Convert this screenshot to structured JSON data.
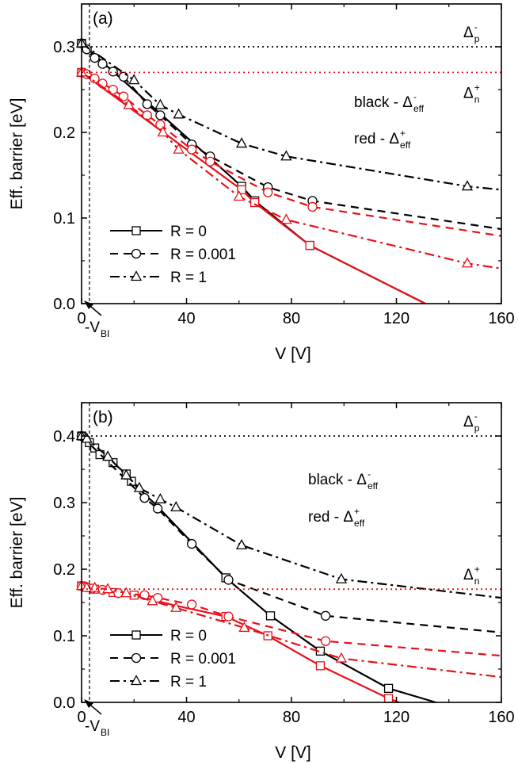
{
  "figure": {
    "colors": {
      "black": "#000000",
      "red": "#e8101a"
    },
    "vbi_label": "-V",
    "vbi_sub": "BI",
    "legend_R0": "R = 0",
    "legend_R0001": "R = 0.001",
    "legend_R1": "R = 1"
  },
  "chart_data": [
    {
      "type": "line",
      "panel_label": "(a)",
      "xlabel": "V [V]",
      "ylabel": "Eff. barrier [eV]",
      "xlim": [
        0,
        160
      ],
      "ylim": [
        0,
        0.35
      ],
      "xticks": [
        "0",
        "40",
        "80",
        "120",
        "160"
      ],
      "yticks": [
        "0.0",
        "0.1",
        "0.2",
        "0.3"
      ],
      "ytick_values": [
        0,
        0.1,
        0.2,
        0.3
      ],
      "reference_lines": [
        {
          "y": 0.3,
          "color": "black",
          "label": "Δ",
          "sup": "-",
          "sub": "p"
        },
        {
          "y": 0.27,
          "color": "red",
          "label": "Δ",
          "sup": "+",
          "sub": "n"
        }
      ],
      "annotations": [
        {
          "text": "black - Δ",
          "sup": "-",
          "sub": "eff"
        },
        {
          "text": "red - Δ",
          "sup": "+",
          "sub": "eff"
        }
      ],
      "series": [
        {
          "name": "R = 0",
          "color": "black",
          "dash": "solid",
          "marker": "square",
          "x": [
            0,
            61,
            66,
            87,
            131
          ],
          "y": [
            0.304,
            0.137,
            0.12,
            0.068,
            0
          ],
          "markers_x": [
            0,
            61,
            66,
            87
          ]
        },
        {
          "name": "R = 0",
          "color": "red",
          "dash": "solid",
          "marker": "square",
          "x": [
            0,
            61,
            66,
            87,
            131
          ],
          "y": [
            0.27,
            0.133,
            0.118,
            0.068,
            0
          ],
          "markers_x": [
            0,
            61,
            66,
            87
          ]
        },
        {
          "name": "R = 0.001",
          "color": "black",
          "dash": "dash",
          "marker": "circle",
          "x": [
            0,
            2,
            5,
            8,
            12,
            16,
            25,
            30,
            42,
            49,
            71,
            88,
            160
          ],
          "y": [
            0.304,
            0.297,
            0.287,
            0.28,
            0.271,
            0.265,
            0.233,
            0.22,
            0.186,
            0.172,
            0.136,
            0.12,
            0.087
          ]
        },
        {
          "name": "R = 0.001",
          "color": "red",
          "dash": "dash",
          "marker": "circle",
          "x": [
            0,
            2,
            5,
            8,
            12,
            16,
            25,
            30,
            42,
            49,
            71,
            88,
            160
          ],
          "y": [
            0.27,
            0.268,
            0.263,
            0.257,
            0.25,
            0.242,
            0.22,
            0.209,
            0.18,
            0.166,
            0.13,
            0.113,
            0.079
          ]
        },
        {
          "name": "R = 1",
          "color": "black",
          "dash": "dashdot",
          "marker": "triangle",
          "x": [
            0,
            20,
            30,
            37,
            61,
            78,
            147,
            160
          ],
          "y": [
            0.304,
            0.261,
            0.232,
            0.221,
            0.187,
            0.172,
            0.137,
            0.133
          ],
          "markers_x": [
            0,
            20,
            30,
            37,
            61,
            78,
            147
          ]
        },
        {
          "name": "R = 1",
          "color": "red",
          "dash": "dashdot",
          "marker": "triangle",
          "x": [
            0,
            18,
            31,
            37,
            60,
            78,
            147,
            160
          ],
          "y": [
            0.27,
            0.232,
            0.2,
            0.18,
            0.125,
            0.098,
            0.047,
            0.041
          ],
          "markers_x": [
            0,
            18,
            31,
            37,
            60,
            78,
            147
          ]
        }
      ]
    },
    {
      "type": "line",
      "panel_label": "(b)",
      "xlabel": "V [V]",
      "ylabel": "Eff. barrier [eV]",
      "xlim": [
        0,
        160
      ],
      "ylim": [
        0,
        0.45
      ],
      "xticks": [
        "0",
        "40",
        "80",
        "120",
        "160"
      ],
      "yticks": [
        "0.0",
        "0.1",
        "0.2",
        "0.3",
        "0.4"
      ],
      "ytick_values": [
        0,
        0.1,
        0.2,
        0.3,
        0.4
      ],
      "reference_lines": [
        {
          "y": 0.4,
          "color": "black",
          "label": "Δ",
          "sup": "-",
          "sub": "p"
        },
        {
          "y": 0.17,
          "color": "red",
          "label": "Δ",
          "sup": "+",
          "sub": "n"
        }
      ],
      "annotations": [
        {
          "text": "black - Δ",
          "sup": "-",
          "sub": "eff"
        },
        {
          "text": "red - Δ",
          "sup": "+",
          "sub": "eff"
        }
      ],
      "series": [
        {
          "name": "R = 0",
          "color": "black",
          "dash": "solid",
          "marker": "square",
          "x": [
            0,
            3,
            5,
            7,
            12,
            17,
            19,
            22,
            28,
            36,
            55,
            72,
            91,
            117,
            135
          ],
          "y": [
            0.4,
            0.39,
            0.382,
            0.372,
            0.36,
            0.343,
            0.332,
            0.32,
            0.298,
            0.265,
            0.187,
            0.13,
            0.077,
            0.021,
            0
          ],
          "markers_x": [
            0,
            3,
            5,
            7,
            12,
            17,
            19,
            55,
            72,
            91,
            117
          ]
        },
        {
          "name": "R = 0",
          "color": "red",
          "dash": "solid",
          "marker": "square",
          "x": [
            0,
            5,
            12,
            20,
            35,
            55,
            71,
            91,
            117,
            121
          ],
          "y": [
            0.175,
            0.17,
            0.165,
            0.161,
            0.146,
            0.129,
            0.1,
            0.055,
            0.006,
            0
          ],
          "markers_x": [
            0,
            5,
            12,
            20,
            55,
            71,
            91,
            117
          ]
        },
        {
          "name": "R = 0.001",
          "color": "black",
          "dash": "dash",
          "marker": "circle",
          "x": [
            0,
            24,
            29,
            42,
            56,
            93,
            160
          ],
          "y": [
            0.4,
            0.307,
            0.291,
            0.238,
            0.184,
            0.13,
            0.105
          ]
        },
        {
          "name": "R = 0.001",
          "color": "red",
          "dash": "dash",
          "marker": "circle",
          "x": [
            0,
            2,
            4,
            8,
            14,
            24,
            29,
            42,
            56,
            93,
            160
          ],
          "y": [
            0.175,
            0.173,
            0.171,
            0.169,
            0.164,
            0.161,
            0.157,
            0.147,
            0.129,
            0.092,
            0.07
          ]
        },
        {
          "name": "R = 1",
          "color": "black",
          "dash": "dashdot",
          "marker": "triangle",
          "x": [
            0,
            2,
            10,
            17,
            22,
            30,
            36,
            61,
            99,
            160
          ],
          "y": [
            0.4,
            0.396,
            0.369,
            0.341,
            0.322,
            0.305,
            0.293,
            0.236,
            0.185,
            0.157
          ],
          "markers_x": [
            0,
            2,
            10,
            17,
            22,
            30,
            36,
            61,
            99
          ]
        },
        {
          "name": "R = 1",
          "color": "red",
          "dash": "dashdot",
          "marker": "triangle",
          "x": [
            0,
            2,
            5,
            10,
            17,
            27,
            36,
            62,
            99,
            160
          ],
          "y": [
            0.175,
            0.172,
            0.172,
            0.17,
            0.164,
            0.152,
            0.142,
            0.112,
            0.066,
            0.038
          ],
          "markers_x": [
            0,
            2,
            5,
            10,
            17,
            27,
            36,
            62,
            99
          ]
        }
      ]
    }
  ]
}
